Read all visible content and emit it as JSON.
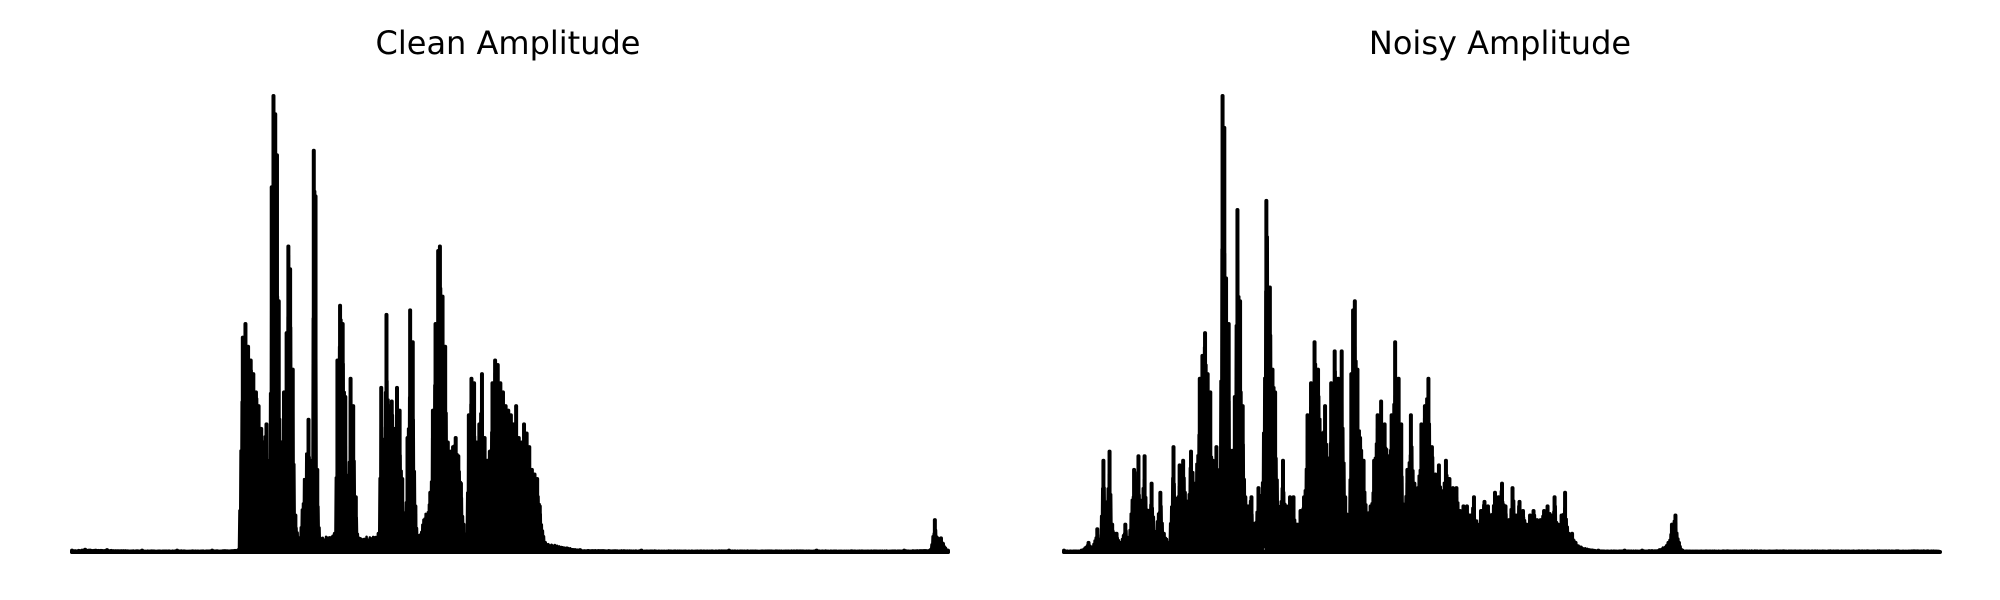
{
  "chart_data": [
    {
      "type": "line",
      "title": "Clean Amplitude",
      "axes_visible": false,
      "grid": false,
      "line_color": "#000000",
      "ylim": [
        0,
        1
      ],
      "peaks": [
        [
          0.0,
          0.003
        ],
        [
          0.015,
          0.005
        ],
        [
          0.04,
          0.004
        ],
        [
          0.08,
          0.003
        ],
        [
          0.12,
          0.003
        ],
        [
          0.16,
          0.003
        ],
        [
          0.19,
          0.004
        ],
        [
          0.195,
          0.47
        ],
        [
          0.198,
          0.5
        ],
        [
          0.201,
          0.45
        ],
        [
          0.204,
          0.42
        ],
        [
          0.207,
          0.39
        ],
        [
          0.21,
          0.35
        ],
        [
          0.213,
          0.32
        ],
        [
          0.216,
          0.27
        ],
        [
          0.219,
          0.24
        ],
        [
          0.222,
          0.28
        ],
        [
          0.225,
          0.18
        ],
        [
          0.228,
          0.8
        ],
        [
          0.23,
          1.0
        ],
        [
          0.232,
          0.96
        ],
        [
          0.234,
          0.87
        ],
        [
          0.236,
          0.55
        ],
        [
          0.239,
          0.2
        ],
        [
          0.242,
          0.35
        ],
        [
          0.245,
          0.48
        ],
        [
          0.247,
          0.67
        ],
        [
          0.249,
          0.62
        ],
        [
          0.252,
          0.4
        ],
        [
          0.255,
          0.08
        ],
        [
          0.26,
          0.03
        ],
        [
          0.27,
          0.29
        ],
        [
          0.272,
          0.18
        ],
        [
          0.274,
          0.2
        ],
        [
          0.276,
          0.88
        ],
        [
          0.278,
          0.78
        ],
        [
          0.28,
          0.18
        ],
        [
          0.283,
          0.03
        ],
        [
          0.3,
          0.04
        ],
        [
          0.303,
          0.42
        ],
        [
          0.306,
          0.54
        ],
        [
          0.309,
          0.5
        ],
        [
          0.312,
          0.34
        ],
        [
          0.315,
          0.14
        ],
        [
          0.318,
          0.38
        ],
        [
          0.321,
          0.32
        ],
        [
          0.324,
          0.12
        ],
        [
          0.327,
          0.03
        ],
        [
          0.35,
          0.04
        ],
        [
          0.353,
          0.36
        ],
        [
          0.356,
          0.24
        ],
        [
          0.359,
          0.52
        ],
        [
          0.362,
          0.32
        ],
        [
          0.365,
          0.33
        ],
        [
          0.368,
          0.27
        ],
        [
          0.371,
          0.36
        ],
        [
          0.374,
          0.31
        ],
        [
          0.377,
          0.16
        ],
        [
          0.38,
          0.06
        ],
        [
          0.383,
          0.25
        ],
        [
          0.386,
          0.53
        ],
        [
          0.389,
          0.46
        ],
        [
          0.392,
          0.1
        ],
        [
          0.395,
          0.03
        ],
        [
          0.409,
          0.13
        ],
        [
          0.412,
          0.31
        ],
        [
          0.415,
          0.5
        ],
        [
          0.418,
          0.66
        ],
        [
          0.42,
          0.67
        ],
        [
          0.423,
          0.56
        ],
        [
          0.426,
          0.45
        ],
        [
          0.429,
          0.24
        ],
        [
          0.432,
          0.22
        ],
        [
          0.435,
          0.23
        ],
        [
          0.438,
          0.25
        ],
        [
          0.441,
          0.21
        ],
        [
          0.444,
          0.15
        ],
        [
          0.447,
          0.06
        ],
        [
          0.45,
          0.03
        ],
        [
          0.453,
          0.3
        ],
        [
          0.456,
          0.38
        ],
        [
          0.459,
          0.37
        ],
        [
          0.462,
          0.24
        ],
        [
          0.465,
          0.28
        ],
        [
          0.468,
          0.39
        ],
        [
          0.471,
          0.25
        ],
        [
          0.474,
          0.2
        ],
        [
          0.477,
          0.22
        ],
        [
          0.48,
          0.37
        ],
        [
          0.483,
          0.42
        ],
        [
          0.486,
          0.41
        ],
        [
          0.489,
          0.37
        ],
        [
          0.492,
          0.35
        ],
        [
          0.495,
          0.32
        ],
        [
          0.498,
          0.31
        ],
        [
          0.501,
          0.3
        ],
        [
          0.504,
          0.28
        ],
        [
          0.507,
          0.32
        ],
        [
          0.51,
          0.25
        ],
        [
          0.513,
          0.24
        ],
        [
          0.516,
          0.28
        ],
        [
          0.519,
          0.26
        ],
        [
          0.522,
          0.23
        ],
        [
          0.525,
          0.18
        ],
        [
          0.528,
          0.17
        ],
        [
          0.531,
          0.16
        ],
        [
          0.534,
          0.1
        ],
        [
          0.54,
          0.02
        ],
        [
          0.58,
          0.004
        ],
        [
          0.65,
          0.003
        ],
        [
          0.75,
          0.003
        ],
        [
          0.85,
          0.003
        ],
        [
          0.95,
          0.003
        ],
        [
          0.98,
          0.004
        ],
        [
          0.985,
          0.07
        ],
        [
          0.988,
          0.03
        ],
        [
          0.992,
          0.03
        ],
        [
          1.0,
          0.003
        ]
      ]
    },
    {
      "type": "line",
      "title": "Noisy Amplitude",
      "axes_visible": false,
      "grid": false,
      "line_color": "#000000",
      "ylim": [
        0,
        1
      ],
      "peaks": [
        [
          0.0,
          0.003
        ],
        [
          0.02,
          0.003
        ],
        [
          0.028,
          0.02
        ],
        [
          0.032,
          0.01
        ],
        [
          0.038,
          0.05
        ],
        [
          0.041,
          0.02
        ],
        [
          0.045,
          0.2
        ],
        [
          0.048,
          0.1
        ],
        [
          0.052,
          0.22
        ],
        [
          0.055,
          0.06
        ],
        [
          0.06,
          0.04
        ],
        [
          0.065,
          0.02
        ],
        [
          0.07,
          0.06
        ],
        [
          0.074,
          0.03
        ],
        [
          0.08,
          0.18
        ],
        [
          0.085,
          0.21
        ],
        [
          0.088,
          0.1
        ],
        [
          0.092,
          0.21
        ],
        [
          0.096,
          0.08
        ],
        [
          0.1,
          0.15
        ],
        [
          0.104,
          0.04
        ],
        [
          0.11,
          0.13
        ],
        [
          0.114,
          0.04
        ],
        [
          0.12,
          0.02
        ],
        [
          0.125,
          0.23
        ],
        [
          0.128,
          0.11
        ],
        [
          0.132,
          0.19
        ],
        [
          0.136,
          0.2
        ],
        [
          0.14,
          0.1
        ],
        [
          0.145,
          0.22
        ],
        [
          0.15,
          0.15
        ],
        [
          0.155,
          0.38
        ],
        [
          0.158,
          0.43
        ],
        [
          0.161,
          0.48
        ],
        [
          0.164,
          0.39
        ],
        [
          0.167,
          0.35
        ],
        [
          0.17,
          0.2
        ],
        [
          0.174,
          0.23
        ],
        [
          0.178,
          0.18
        ],
        [
          0.181,
          1.0
        ],
        [
          0.183,
          0.93
        ],
        [
          0.185,
          0.6
        ],
        [
          0.188,
          0.5
        ],
        [
          0.191,
          0.17
        ],
        [
          0.195,
          0.34
        ],
        [
          0.198,
          0.75
        ],
        [
          0.201,
          0.55
        ],
        [
          0.204,
          0.32
        ],
        [
          0.207,
          0.12
        ],
        [
          0.21,
          0.1
        ],
        [
          0.214,
          0.12
        ],
        [
          0.218,
          0.05
        ],
        [
          0.222,
          0.14
        ],
        [
          0.226,
          0.12
        ],
        [
          0.231,
          0.77
        ],
        [
          0.235,
          0.58
        ],
        [
          0.238,
          0.4
        ],
        [
          0.241,
          0.35
        ],
        [
          0.245,
          0.08
        ],
        [
          0.25,
          0.2
        ],
        [
          0.254,
          0.1
        ],
        [
          0.258,
          0.12
        ],
        [
          0.262,
          0.12
        ],
        [
          0.266,
          0.06
        ],
        [
          0.27,
          0.09
        ],
        [
          0.274,
          0.12
        ],
        [
          0.278,
          0.3
        ],
        [
          0.282,
          0.37
        ],
        [
          0.286,
          0.46
        ],
        [
          0.29,
          0.4
        ],
        [
          0.294,
          0.26
        ],
        [
          0.298,
          0.32
        ],
        [
          0.302,
          0.2
        ],
        [
          0.305,
          0.37
        ],
        [
          0.309,
          0.44
        ],
        [
          0.313,
          0.38
        ],
        [
          0.317,
          0.44
        ],
        [
          0.321,
          0.12
        ],
        [
          0.325,
          0.08
        ],
        [
          0.328,
          0.39
        ],
        [
          0.33,
          0.53
        ],
        [
          0.332,
          0.55
        ],
        [
          0.335,
          0.4
        ],
        [
          0.338,
          0.25
        ],
        [
          0.342,
          0.2
        ],
        [
          0.346,
          0.08
        ],
        [
          0.35,
          0.1
        ],
        [
          0.354,
          0.2
        ],
        [
          0.358,
          0.3
        ],
        [
          0.362,
          0.33
        ],
        [
          0.366,
          0.28
        ],
        [
          0.37,
          0.21
        ],
        [
          0.374,
          0.3
        ],
        [
          0.378,
          0.46
        ],
        [
          0.382,
          0.38
        ],
        [
          0.385,
          0.28
        ],
        [
          0.388,
          0.1
        ],
        [
          0.392,
          0.18
        ],
        [
          0.396,
          0.3
        ],
        [
          0.4,
          0.15
        ],
        [
          0.404,
          0.14
        ],
        [
          0.408,
          0.28
        ],
        [
          0.412,
          0.32
        ],
        [
          0.416,
          0.38
        ],
        [
          0.42,
          0.23
        ],
        [
          0.424,
          0.17
        ],
        [
          0.428,
          0.19
        ],
        [
          0.432,
          0.13
        ],
        [
          0.436,
          0.2
        ],
        [
          0.44,
          0.16
        ],
        [
          0.444,
          0.14
        ],
        [
          0.448,
          0.14
        ],
        [
          0.452,
          0.09
        ],
        [
          0.456,
          0.1
        ],
        [
          0.46,
          0.1
        ],
        [
          0.464,
          0.08
        ],
        [
          0.468,
          0.12
        ],
        [
          0.472,
          0.06
        ],
        [
          0.476,
          0.09
        ],
        [
          0.48,
          0.11
        ],
        [
          0.484,
          0.1
        ],
        [
          0.488,
          0.08
        ],
        [
          0.492,
          0.13
        ],
        [
          0.496,
          0.12
        ],
        [
          0.5,
          0.15
        ],
        [
          0.504,
          0.1
        ],
        [
          0.508,
          0.07
        ],
        [
          0.512,
          0.14
        ],
        [
          0.516,
          0.08
        ],
        [
          0.52,
          0.11
        ],
        [
          0.524,
          0.09
        ],
        [
          0.528,
          0.06
        ],
        [
          0.532,
          0.08
        ],
        [
          0.536,
          0.09
        ],
        [
          0.54,
          0.07
        ],
        [
          0.544,
          0.07
        ],
        [
          0.548,
          0.09
        ],
        [
          0.552,
          0.1
        ],
        [
          0.556,
          0.08
        ],
        [
          0.56,
          0.12
        ],
        [
          0.564,
          0.06
        ],
        [
          0.568,
          0.08
        ],
        [
          0.572,
          0.13
        ],
        [
          0.576,
          0.04
        ],
        [
          0.58,
          0.04
        ],
        [
          0.584,
          0.02
        ],
        [
          0.59,
          0.01
        ],
        [
          0.61,
          0.003
        ],
        [
          0.64,
          0.003
        ],
        [
          0.66,
          0.003
        ],
        [
          0.68,
          0.004
        ],
        [
          0.69,
          0.02
        ],
        [
          0.694,
          0.06
        ],
        [
          0.698,
          0.08
        ],
        [
          0.702,
          0.02
        ],
        [
          0.706,
          0.003
        ]
      ]
    }
  ]
}
